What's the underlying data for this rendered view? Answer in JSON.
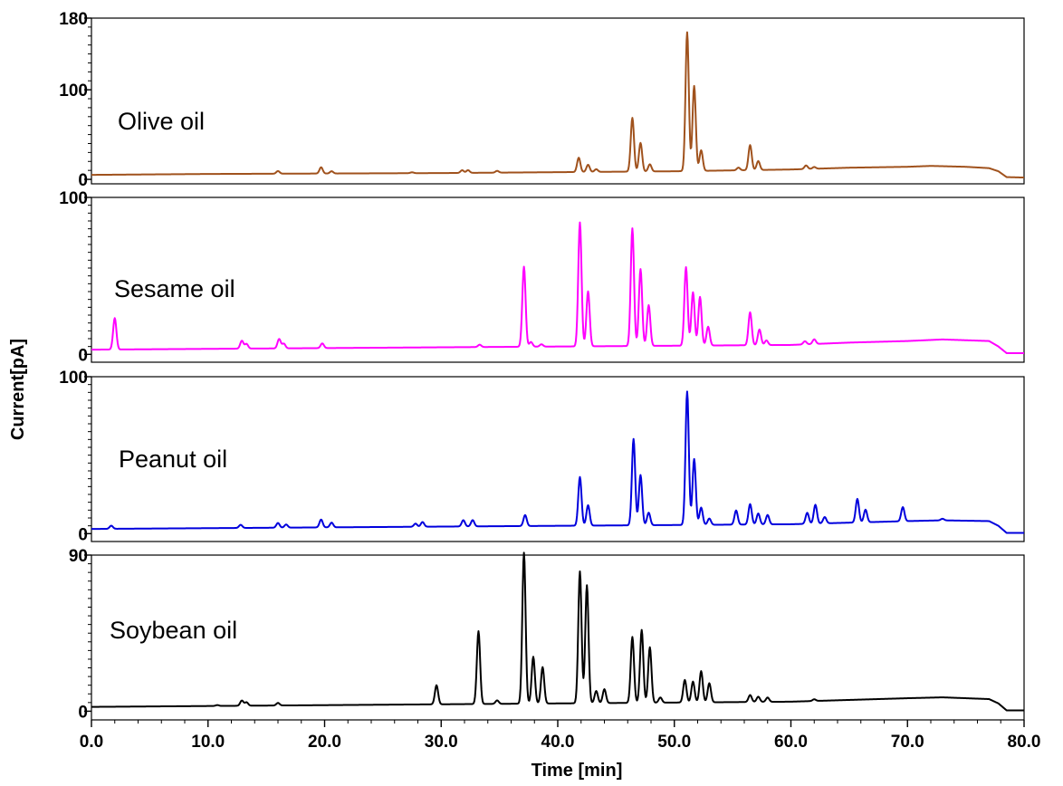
{
  "chart_data": {
    "type": "line",
    "xlabel": "Time [min]",
    "ylabel": "Current[pA]",
    "xlim": [
      0,
      80
    ],
    "x_ticks": [
      "0.0",
      "10.0",
      "20.0",
      "30.0",
      "40.0",
      "50.0",
      "60.0",
      "70.0",
      "80.0"
    ],
    "grid": false,
    "legend": "none",
    "panels": [
      {
        "name": "Olive oil",
        "color": "#A0521D",
        "ylim": [
          -5,
          180
        ],
        "y_ticks": [
          "0",
          "100",
          "180"
        ],
        "baseline": [
          [
            0,
            5
          ],
          [
            10,
            6
          ],
          [
            20,
            6.5
          ],
          [
            30,
            7
          ],
          [
            40,
            8
          ],
          [
            50,
            9
          ],
          [
            60,
            11
          ],
          [
            65,
            13
          ],
          [
            70,
            14
          ],
          [
            72,
            15
          ],
          [
            75,
            14
          ],
          [
            77,
            12.5
          ],
          [
            77.8,
            9
          ],
          [
            78.5,
            2.5
          ],
          [
            80,
            2
          ]
        ],
        "peaks": [
          {
            "t": 16.0,
            "h": 3
          },
          {
            "t": 19.7,
            "h": 7
          },
          {
            "t": 20.6,
            "h": 2.5
          },
          {
            "t": 27.5,
            "h": 1
          },
          {
            "t": 31.8,
            "h": 3
          },
          {
            "t": 32.3,
            "h": 3
          },
          {
            "t": 34.8,
            "h": 2
          },
          {
            "t": 41.8,
            "h": 16
          },
          {
            "t": 42.6,
            "h": 8
          },
          {
            "t": 43.3,
            "h": 3
          },
          {
            "t": 46.4,
            "h": 60
          },
          {
            "t": 47.1,
            "h": 32
          },
          {
            "t": 47.9,
            "h": 8
          },
          {
            "t": 51.1,
            "h": 155
          },
          {
            "t": 51.7,
            "h": 95
          },
          {
            "t": 52.3,
            "h": 23
          },
          {
            "t": 55.5,
            "h": 3
          },
          {
            "t": 56.5,
            "h": 28
          },
          {
            "t": 57.2,
            "h": 10
          },
          {
            "t": 61.3,
            "h": 4
          },
          {
            "t": 62.0,
            "h": 2
          }
        ]
      },
      {
        "name": "Sesame oil",
        "color": "#FF00FF",
        "ylim": [
          -5,
          100
        ],
        "y_ticks": [
          "0",
          "100"
        ],
        "baseline": [
          [
            0,
            3
          ],
          [
            10,
            3.5
          ],
          [
            20,
            4
          ],
          [
            30,
            4.5
          ],
          [
            40,
            5
          ],
          [
            50,
            5.5
          ],
          [
            60,
            6
          ],
          [
            65,
            7.5
          ],
          [
            70,
            8.5
          ],
          [
            73,
            9.5
          ],
          [
            77,
            8.5
          ],
          [
            77.8,
            5
          ],
          [
            78.5,
            0.8
          ],
          [
            80,
            0.8
          ]
        ],
        "peaks": [
          {
            "t": 2.0,
            "h": 20
          },
          {
            "t": 12.9,
            "h": 5
          },
          {
            "t": 13.3,
            "h": 3
          },
          {
            "t": 16.1,
            "h": 6
          },
          {
            "t": 16.5,
            "h": 3
          },
          {
            "t": 19.8,
            "h": 3
          },
          {
            "t": 33.3,
            "h": 1.5
          },
          {
            "t": 37.1,
            "h": 51
          },
          {
            "t": 37.7,
            "h": 3
          },
          {
            "t": 38.6,
            "h": 1.5
          },
          {
            "t": 41.9,
            "h": 79
          },
          {
            "t": 42.6,
            "h": 35
          },
          {
            "t": 46.4,
            "h": 75
          },
          {
            "t": 47.1,
            "h": 49
          },
          {
            "t": 47.8,
            "h": 26
          },
          {
            "t": 51.0,
            "h": 50
          },
          {
            "t": 51.6,
            "h": 34
          },
          {
            "t": 52.2,
            "h": 31
          },
          {
            "t": 52.9,
            "h": 12
          },
          {
            "t": 56.5,
            "h": 21
          },
          {
            "t": 57.3,
            "h": 10
          },
          {
            "t": 57.9,
            "h": 3
          },
          {
            "t": 61.2,
            "h": 2
          },
          {
            "t": 62.0,
            "h": 3
          }
        ]
      },
      {
        "name": "Peanut oil",
        "color": "#0000DD",
        "ylim": [
          -5,
          100
        ],
        "y_ticks": [
          "0",
          "100"
        ],
        "baseline": [
          [
            0,
            3
          ],
          [
            10,
            3.5
          ],
          [
            20,
            4
          ],
          [
            30,
            4.5
          ],
          [
            40,
            5
          ],
          [
            50,
            5.5
          ],
          [
            60,
            6
          ],
          [
            65,
            7
          ],
          [
            70,
            8
          ],
          [
            73,
            8.5
          ],
          [
            77,
            8
          ],
          [
            77.8,
            5
          ],
          [
            78.5,
            0.5
          ],
          [
            80,
            0.5
          ]
        ],
        "peaks": [
          {
            "t": 1.7,
            "h": 2
          },
          {
            "t": 12.8,
            "h": 2
          },
          {
            "t": 16.0,
            "h": 3
          },
          {
            "t": 16.7,
            "h": 2
          },
          {
            "t": 19.7,
            "h": 5
          },
          {
            "t": 20.6,
            "h": 3
          },
          {
            "t": 27.8,
            "h": 2
          },
          {
            "t": 28.4,
            "h": 3
          },
          {
            "t": 31.9,
            "h": 4
          },
          {
            "t": 32.7,
            "h": 4
          },
          {
            "t": 37.2,
            "h": 7
          },
          {
            "t": 41.9,
            "h": 31
          },
          {
            "t": 42.6,
            "h": 13
          },
          {
            "t": 46.5,
            "h": 55
          },
          {
            "t": 47.1,
            "h": 32
          },
          {
            "t": 47.8,
            "h": 8
          },
          {
            "t": 51.1,
            "h": 85
          },
          {
            "t": 51.7,
            "h": 42
          },
          {
            "t": 52.3,
            "h": 11
          },
          {
            "t": 53.0,
            "h": 4
          },
          {
            "t": 55.3,
            "h": 9
          },
          {
            "t": 56.5,
            "h": 13
          },
          {
            "t": 57.2,
            "h": 7
          },
          {
            "t": 58.0,
            "h": 6
          },
          {
            "t": 61.4,
            "h": 7
          },
          {
            "t": 62.1,
            "h": 12
          },
          {
            "t": 62.9,
            "h": 4
          },
          {
            "t": 65.7,
            "h": 15
          },
          {
            "t": 66.4,
            "h": 8
          },
          {
            "t": 69.6,
            "h": 9
          },
          {
            "t": 73.0,
            "h": 1
          }
        ]
      },
      {
        "name": "Soybean oil",
        "color": "#000000",
        "ylim": [
          -5,
          90
        ],
        "y_ticks": [
          "0",
          "90"
        ],
        "baseline": [
          [
            0,
            2.5
          ],
          [
            10,
            3
          ],
          [
            20,
            3.5
          ],
          [
            30,
            4
          ],
          [
            40,
            4.5
          ],
          [
            50,
            5
          ],
          [
            60,
            5.5
          ],
          [
            65,
            6.5
          ],
          [
            70,
            7.5
          ],
          [
            73,
            8
          ],
          [
            77,
            7
          ],
          [
            77.8,
            4.5
          ],
          [
            78.5,
            0.5
          ],
          [
            80,
            0.5
          ]
        ],
        "peaks": [
          {
            "t": 10.8,
            "h": 0.5
          },
          {
            "t": 12.9,
            "h": 3
          },
          {
            "t": 13.3,
            "h": 2
          },
          {
            "t": 16.0,
            "h": 1.5
          },
          {
            "t": 29.6,
            "h": 11
          },
          {
            "t": 33.2,
            "h": 42
          },
          {
            "t": 34.8,
            "h": 2
          },
          {
            "t": 37.1,
            "h": 87
          },
          {
            "t": 37.9,
            "h": 27
          },
          {
            "t": 38.7,
            "h": 21
          },
          {
            "t": 41.9,
            "h": 76
          },
          {
            "t": 42.5,
            "h": 68
          },
          {
            "t": 43.3,
            "h": 7
          },
          {
            "t": 44.0,
            "h": 8
          },
          {
            "t": 46.4,
            "h": 38
          },
          {
            "t": 47.2,
            "h": 42
          },
          {
            "t": 47.9,
            "h": 32
          },
          {
            "t": 48.8,
            "h": 3
          },
          {
            "t": 50.9,
            "h": 13
          },
          {
            "t": 51.6,
            "h": 12
          },
          {
            "t": 52.3,
            "h": 18
          },
          {
            "t": 53.0,
            "h": 11
          },
          {
            "t": 56.5,
            "h": 4
          },
          {
            "t": 57.2,
            "h": 3
          },
          {
            "t": 58.0,
            "h": 2.5
          },
          {
            "t": 62.0,
            "h": 1
          }
        ]
      }
    ]
  }
}
